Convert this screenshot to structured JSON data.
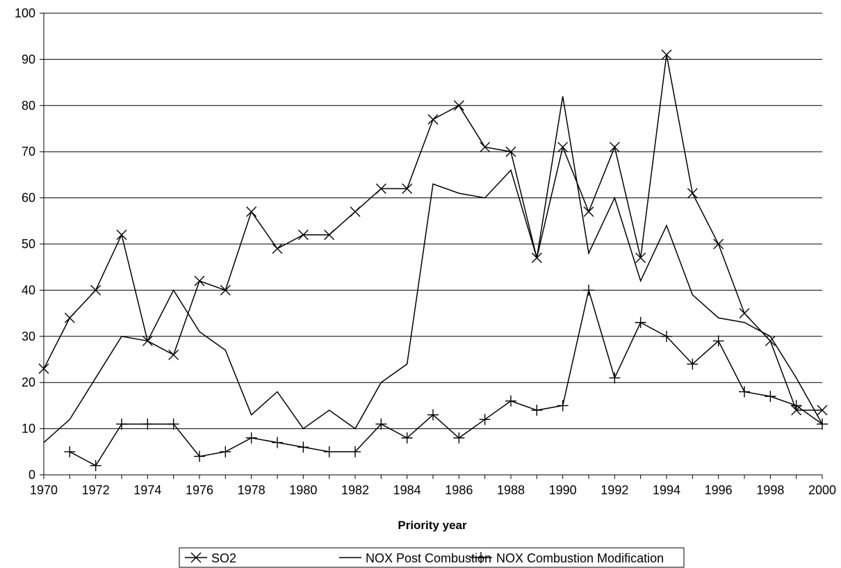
{
  "chart_data": {
    "type": "line",
    "title": "",
    "xlabel": "Priority year",
    "ylabel": "",
    "xlim": [
      1970,
      2000
    ],
    "ylim": [
      0,
      100
    ],
    "x_ticks": [
      1970,
      1972,
      1974,
      1976,
      1978,
      1980,
      1982,
      1984,
      1986,
      1988,
      1990,
      1992,
      1994,
      1996,
      1998,
      2000
    ],
    "y_ticks": [
      0,
      10,
      20,
      30,
      40,
      50,
      60,
      70,
      80,
      90,
      100
    ],
    "grid": "horizontal",
    "legend_position": "bottom",
    "series": [
      {
        "name": "SO2",
        "marker": "x",
        "color": "#000000",
        "x": [
          1970,
          1971,
          1972,
          1973,
          1974,
          1975,
          1976,
          1977,
          1978,
          1979,
          1980,
          1981,
          1982,
          1983,
          1984,
          1985,
          1986,
          1987,
          1988,
          1989,
          1990,
          1991,
          1992,
          1993,
          1994,
          1995,
          1996,
          1997,
          1998,
          1999,
          2000
        ],
        "values": [
          23,
          34,
          40,
          52,
          29,
          26,
          42,
          40,
          57,
          49,
          52,
          52,
          57,
          62,
          62,
          77,
          80,
          71,
          70,
          47,
          71,
          57,
          71,
          47,
          91,
          61,
          50,
          35,
          29,
          14,
          14
        ]
      },
      {
        "name": "NOX Post Combustion",
        "marker": "none",
        "color": "#000000",
        "x": [
          1970,
          1971,
          1972,
          1973,
          1974,
          1975,
          1976,
          1977,
          1978,
          1979,
          1980,
          1981,
          1982,
          1983,
          1984,
          1985,
          1986,
          1987,
          1988,
          1989,
          1990,
          1991,
          1992,
          1993,
          1994,
          1995,
          1996,
          1997,
          1998,
          1999,
          2000
        ],
        "values": [
          7,
          12,
          21,
          30,
          29,
          40,
          31,
          27,
          13,
          18,
          10,
          14,
          10,
          20,
          24,
          63,
          61,
          60,
          66,
          47,
          82,
          48,
          60,
          42,
          54,
          39,
          34,
          33,
          30,
          21,
          11
        ]
      },
      {
        "name": "NOX Combustion Modification",
        "marker": "+",
        "color": "#000000",
        "x": [
          1971,
          1972,
          1973,
          1974,
          1975,
          1976,
          1977,
          1978,
          1979,
          1980,
          1981,
          1982,
          1983,
          1984,
          1985,
          1986,
          1987,
          1988,
          1989,
          1990,
          1991,
          1992,
          1993,
          1994,
          1995,
          1996,
          1997,
          1998,
          1999,
          2000
        ],
        "values": [
          5,
          2,
          11,
          11,
          11,
          4,
          5,
          8,
          7,
          6,
          5,
          5,
          11,
          8,
          13,
          8,
          12,
          16,
          14,
          15,
          40,
          21,
          33,
          30,
          24,
          29,
          18,
          17,
          15,
          11
        ]
      }
    ]
  }
}
